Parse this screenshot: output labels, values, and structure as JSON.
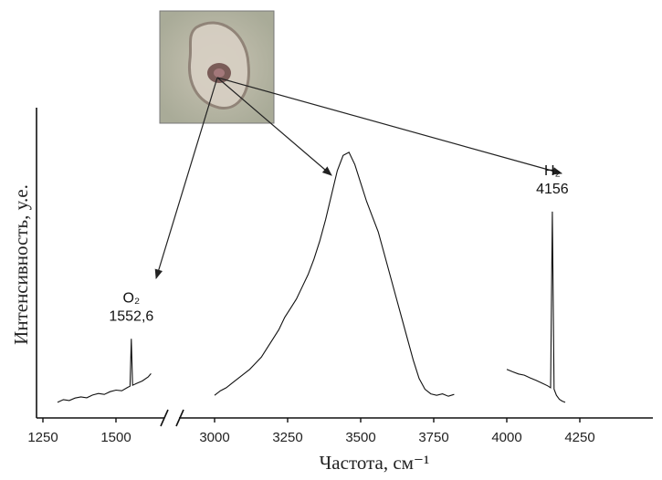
{
  "chart_data": {
    "type": "line",
    "x_label": "Частота, см⁻¹",
    "y_label": "Интенсивность, у.е.",
    "x_segments": [
      {
        "xlim": [
          1250,
          1650
        ],
        "xticks": [
          1250,
          1500
        ]
      },
      {
        "xlim": [
          2900,
          4400
        ],
        "xticks": [
          3000,
          3250,
          3500,
          3750,
          4000,
          4250
        ]
      }
    ],
    "ylim": [
      0,
      100
    ],
    "color": "#111111",
    "series": [
      {
        "x": [
          1300,
          1320,
          1340,
          1360,
          1380,
          1400,
          1420,
          1440,
          1460,
          1480,
          1500,
          1520,
          1540,
          1548,
          1552.6,
          1557,
          1570,
          1590,
          1610,
          1620
        ],
        "values": [
          4.2,
          5.1,
          4.8,
          5.6,
          6.0,
          5.7,
          6.6,
          7.1,
          6.8,
          7.7,
          8.2,
          8.0,
          9.1,
          9.5,
          25,
          9.8,
          10.4,
          11.2,
          12.5,
          13.6
        ]
      },
      {
        "x": [
          3000,
          3020,
          3040,
          3060,
          3080,
          3100,
          3120,
          3140,
          3160,
          3180,
          3200,
          3220,
          3240,
          3260,
          3280,
          3300,
          3320,
          3340,
          3360,
          3380,
          3400,
          3420,
          3440,
          3460,
          3480,
          3500,
          3520,
          3540,
          3560,
          3580,
          3600,
          3620,
          3640,
          3660,
          3680,
          3700,
          3720,
          3740,
          3760,
          3780,
          3800,
          3820
        ],
        "values": [
          6.5,
          8,
          9,
          10.5,
          12,
          13.5,
          15,
          17,
          19,
          22,
          25,
          28,
          32,
          35,
          38,
          42,
          46,
          51,
          57,
          64,
          72,
          80,
          85,
          86,
          82,
          76,
          70,
          65,
          60,
          53,
          46,
          39,
          32,
          25,
          18,
          12,
          8.5,
          7,
          6.5,
          7,
          6.2,
          6.8
        ]
      },
      {
        "x": [
          4000,
          4020,
          4040,
          4060,
          4080,
          4100,
          4120,
          4140,
          4150,
          4156,
          4162,
          4170,
          4180,
          4190,
          4200
        ],
        "values": [
          15,
          14.2,
          13.5,
          13.1,
          12.2,
          11.4,
          10.5,
          9.6,
          9,
          66.6,
          8.5,
          6.5,
          5.2,
          4.6,
          4.2
        ]
      }
    ],
    "annotations": [
      {
        "label": "O₂",
        "value_label": "1552,6",
        "x": 1552.6
      },
      {
        "label": "H₂",
        "value_label": "4156",
        "x": 4156
      }
    ]
  }
}
